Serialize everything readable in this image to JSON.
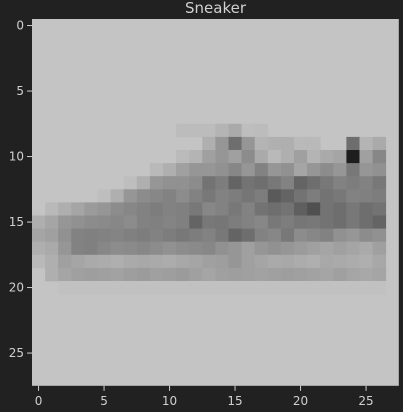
{
  "title": "Sneaker",
  "colors": {
    "background": "#212121",
    "text": "#d0d0d0",
    "colormap": "gray"
  },
  "image": {
    "width": 28,
    "height": 28,
    "value_range": [
      0,
      255
    ],
    "background_value": 196,
    "rows": [
      [
        9,
        17,
        "196,196,196,196,196,196,196,196,190,188,189,190,194,196,196,196,196,196,196"
      ],
      [
        10,
        12,
        "184,181,186,190,188,190,192,196,180,182,178,174,165,160,178,172,160,164,178,150,176,130,140,130,125,130,140,130,160,140,150,100,110"
      ],
      [
        11,
        9,
        "190,188,184,170,160,150,145,140,130,128,130,140,150,150,140,130,120,124,118,122,130,135,140,150,160,158,140,170,160,150,165,140,170"
      ]
    ],
    "sprites": [
      {
        "row_start": 8,
        "col": 18,
        "value": 175
      },
      {
        "row_start": 8,
        "col": 23,
        "value": 140
      },
      {
        "row_start": 9,
        "col": 15,
        "value": 110
      },
      {
        "row_start": 9,
        "col": 14,
        "value": 150
      },
      {
        "row_start": 9,
        "col": 16,
        "value": 160
      },
      {
        "row_start": 9,
        "col": 24,
        "value": 110
      },
      {
        "row_start": 10,
        "col": 24,
        "value": 30
      },
      {
        "row_start": 10,
        "col": 25,
        "value": 160
      },
      {
        "row_start": 10,
        "col": 26,
        "value": 135
      },
      {
        "row_start": 11,
        "col": 22,
        "value": 140
      },
      {
        "row_start": 11,
        "col": 24,
        "value": 120
      },
      {
        "row_start": 12,
        "col": 13,
        "value": 115
      },
      {
        "row_start": 12,
        "col": 15,
        "value": 100
      },
      {
        "row_start": 12,
        "col": 17,
        "value": 110
      },
      {
        "row_start": 12,
        "col": 20,
        "value": 100
      },
      {
        "row_start": 12,
        "col": 21,
        "value": 110
      },
      {
        "row_start": 13,
        "col": 18,
        "value": 90
      },
      {
        "row_start": 13,
        "col": 19,
        "value": 100
      },
      {
        "row_start": 14,
        "col": 21,
        "value": 80
      },
      {
        "row_start": 14,
        "col": 20,
        "value": 95
      },
      {
        "row_start": 15,
        "col": 12,
        "value": 100
      },
      {
        "row_start": 15,
        "col": 26,
        "value": 100
      }
    ]
  },
  "chart_data": {
    "type": "heatmap",
    "title": "Sneaker",
    "xlabel": "",
    "ylabel": "",
    "xlim": [
      -0.5,
      27.5
    ],
    "ylim": [
      27.5,
      -0.5
    ],
    "xticks": [
      0,
      5,
      10,
      15,
      20,
      25
    ],
    "yticks": [
      0,
      5,
      10,
      15,
      20,
      25
    ],
    "grid": false
  }
}
